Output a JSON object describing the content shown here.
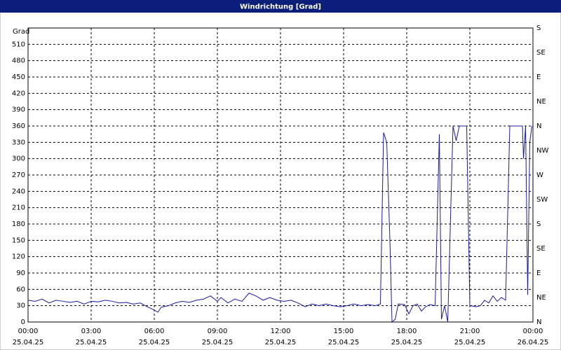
{
  "chart_data": {
    "type": "line",
    "title": "Windrichtung [Grad]",
    "y_label": "Grad",
    "x": [
      0,
      0.33,
      0.67,
      1,
      1.33,
      1.67,
      2,
      2.33,
      2.67,
      3,
      3.33,
      3.67,
      4,
      4.33,
      4.67,
      5,
      5.33,
      5.67,
      6,
      6.17,
      6.33,
      6.67,
      7,
      7.33,
      7.67,
      8,
      8.33,
      8.67,
      9,
      9.17,
      9.5,
      9.83,
      10.17,
      10.5,
      10.83,
      11.17,
      11.5,
      11.83,
      12.17,
      12.5,
      12.83,
      13.17,
      13.5,
      13.83,
      14.17,
      14.5,
      14.83,
      15.17,
      15.5,
      15.83,
      16.17,
      16.5,
      16.75,
      16.9,
      17.05,
      17.2,
      17.3,
      17.45,
      17.6,
      17.9,
      18.1,
      18.3,
      18.5,
      18.7,
      18.9,
      19.1,
      19.35,
      19.55,
      19.65,
      19.8,
      19.95,
      20.2,
      20.35,
      20.5,
      20.85,
      21,
      21.3,
      21.5,
      21.7,
      21.9,
      22.1,
      22.3,
      22.5,
      22.7,
      22.9,
      23.3,
      23.5,
      23.55,
      23.65,
      23.75,
      23.85,
      23.95
    ],
    "values": [
      40,
      38,
      42,
      35,
      40,
      38,
      36,
      38,
      33,
      38,
      37,
      40,
      38,
      35,
      36,
      33,
      35,
      28,
      22,
      18,
      27,
      30,
      35,
      38,
      36,
      40,
      42,
      48,
      38,
      45,
      35,
      42,
      38,
      53,
      48,
      40,
      45,
      40,
      38,
      40,
      35,
      28,
      33,
      30,
      33,
      30,
      28,
      30,
      33,
      30,
      32,
      30,
      33,
      348,
      330,
      150,
      0,
      5,
      33,
      32,
      15,
      30,
      33,
      20,
      28,
      32,
      30,
      345,
      5,
      30,
      0,
      360,
      333,
      360,
      360,
      30,
      28,
      30,
      40,
      35,
      48,
      38,
      45,
      40,
      360,
      360,
      360,
      300,
      360,
      50,
      330,
      360
    ],
    "color": "#1a1aa6",
    "xlim": [
      0,
      24
    ],
    "xticks": [
      {
        "value": 0,
        "label": "00:00"
      },
      {
        "value": 3,
        "label": "03:00"
      },
      {
        "value": 6,
        "label": "06:00"
      },
      {
        "value": 9,
        "label": "09:00"
      },
      {
        "value": 12,
        "label": "12:00"
      },
      {
        "value": 15,
        "label": "15:00"
      },
      {
        "value": 18,
        "label": "18:00"
      },
      {
        "value": 21,
        "label": "21:00"
      },
      {
        "value": 24,
        "label": "00:00"
      }
    ],
    "xtick_dates": [
      "25.04.25",
      "25.04.25",
      "25.04.25",
      "25.04.25",
      "25.04.25",
      "25.04.25",
      "25.04.25",
      "25.04.25",
      "26.04.25"
    ],
    "ylim": [
      0,
      540
    ],
    "yticks": [
      0,
      30,
      60,
      90,
      120,
      150,
      180,
      210,
      240,
      270,
      300,
      330,
      360,
      390,
      420,
      450,
      480,
      510
    ],
    "y2lim": [
      0,
      540
    ],
    "y2ticks": [
      {
        "value": 0,
        "label": "N"
      },
      {
        "value": 45,
        "label": "NE"
      },
      {
        "value": 90,
        "label": "E"
      },
      {
        "value": 135,
        "label": "SE"
      },
      {
        "value": 180,
        "label": "S"
      },
      {
        "value": 225,
        "label": "SW"
      },
      {
        "value": 270,
        "label": "W"
      },
      {
        "value": 315,
        "label": "NW"
      },
      {
        "value": 360,
        "label": "N"
      },
      {
        "value": 405,
        "label": "NE"
      },
      {
        "value": 450,
        "label": "E"
      },
      {
        "value": 495,
        "label": "SE"
      },
      {
        "value": 540,
        "label": "S"
      }
    ],
    "grid": true
  }
}
